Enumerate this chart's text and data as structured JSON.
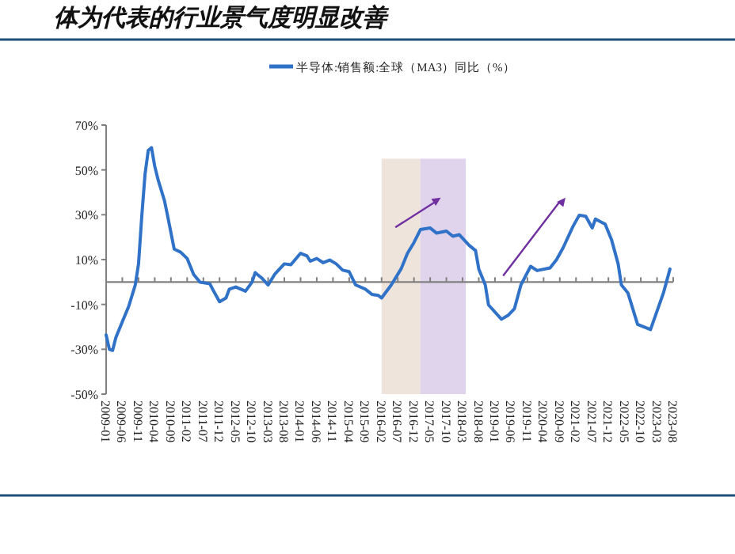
{
  "chart_data": {
    "type": "line",
    "title": "体为代表的行业景气度明显改善",
    "x": [
      "2009-01",
      "2009-02",
      "2009-03",
      "2009-04",
      "2009-06",
      "2009-08",
      "2009-10",
      "2009-11",
      "2009-12",
      "2010-01",
      "2010-02",
      "2010-03",
      "2010-04",
      "2010-05",
      "2010-07",
      "2010-08",
      "2010-10",
      "2010-12",
      "2011-02",
      "2011-04",
      "2011-06",
      "2011-09",
      "2011-10",
      "2011-12",
      "2012-02",
      "2012-03",
      "2012-05",
      "2012-08",
      "2012-10",
      "2012-11",
      "2013-01",
      "2013-03",
      "2013-05",
      "2013-08",
      "2013-10",
      "2014-01",
      "2014-03",
      "2014-04",
      "2014-06",
      "2014-08",
      "2014-10",
      "2014-12",
      "2015-02",
      "2015-04",
      "2015-06",
      "2015-09",
      "2015-11",
      "2016-01",
      "2016-02",
      "2016-05",
      "2016-08",
      "2016-10",
      "2016-12",
      "2017-02",
      "2017-05",
      "2017-07",
      "2017-10",
      "2017-12",
      "2018-02",
      "2018-05",
      "2018-07",
      "2018-08",
      "2018-10",
      "2018-11",
      "2019-03",
      "2019-05",
      "2019-07",
      "2019-09",
      "2019-12",
      "2020-02",
      "2020-06",
      "2020-08",
      "2020-10",
      "2021-01",
      "2021-03",
      "2021-05",
      "2021-07",
      "2021-08",
      "2021-11",
      "2022-01",
      "2022-03",
      "2022-04",
      "2022-06",
      "2022-09",
      "2023-01",
      "2023-03",
      "2023-05",
      "2023-07"
    ],
    "series": [
      {
        "name": "半导体:销售额:全球（MA3）同比（%）",
        "color": "#2f72c8",
        "values": [
          -23.6,
          -30,
          -30.5,
          -24.8,
          -17.7,
          -10.7,
          -1.3,
          8.1,
          29.3,
          48,
          58.7,
          59.9,
          51.6,
          45.8,
          36.3,
          29.3,
          14.7,
          13.3,
          10.5,
          3.4,
          -0.1,
          -0.8,
          -3.6,
          -8.8,
          -7.1,
          -3.2,
          -2.2,
          -4.1,
          -0.1,
          4.2,
          1.8,
          -1.3,
          3.4,
          8.1,
          7.7,
          12.8,
          11.6,
          9.3,
          10.5,
          8.6,
          9.8,
          8.1,
          5.3,
          4.6,
          -1.3,
          -3.2,
          -5.5,
          -6,
          -7.1,
          -1.3,
          5.8,
          12.8,
          17.6,
          23.4,
          24.1,
          21.8,
          22.7,
          20.4,
          21.1,
          16.4,
          14,
          5.8,
          -1.3,
          -10.2,
          -16.6,
          -14.9,
          -11.9,
          -1.3,
          7,
          5.1,
          6.3,
          10,
          15.2,
          24.6,
          29.8,
          29.3,
          24.1,
          28.1,
          25.8,
          18.7,
          8.1,
          -1.3,
          -4.8,
          -18.9,
          -21.2,
          -13,
          -4.8,
          5.8
        ]
      }
    ],
    "xlim": [
      "2009-01",
      "2023-08"
    ],
    "xticks": [
      "2009-01",
      "2009-06",
      "2009-11",
      "2010-04",
      "2010-09",
      "2011-02",
      "2011-07",
      "2011-12",
      "2012-05",
      "2012-10",
      "2013-03",
      "2013-08",
      "2014-01",
      "2014-06",
      "2014-11",
      "2015-04",
      "2015-09",
      "2016-02",
      "2016-07",
      "2016-12",
      "2017-05",
      "2017-10",
      "2018-03",
      "2018-08",
      "2019-01",
      "2019-06",
      "2019-11",
      "2020-04",
      "2020-09",
      "2021-02",
      "2021-07",
      "2021-12",
      "2022-05",
      "2022-10",
      "2023-03",
      "2023-08"
    ],
    "ylim": [
      -50,
      70
    ],
    "yticks": [
      {
        "value": -50,
        "label": "-50%"
      },
      {
        "value": -30,
        "label": "-30%"
      },
      {
        "value": -10,
        "label": "-10%"
      },
      {
        "value": 10,
        "label": "10%"
      },
      {
        "value": 30,
        "label": "30%"
      },
      {
        "value": 50,
        "label": "50%"
      },
      {
        "value": 70,
        "label": "70%"
      }
    ],
    "ref_lines": [
      {
        "axis": "y",
        "value": 0,
        "color": "#808080"
      }
    ],
    "bands": [
      {
        "axis": "x",
        "from": "2016-02",
        "to": "2017-02",
        "color": "#eee4dc"
      },
      {
        "axis": "x",
        "from": "2017-02",
        "to": "2018-04",
        "color": "#e0d4ec"
      }
    ],
    "legend": "top",
    "grid": false,
    "marker": "none",
    "line_style": "solid"
  }
}
